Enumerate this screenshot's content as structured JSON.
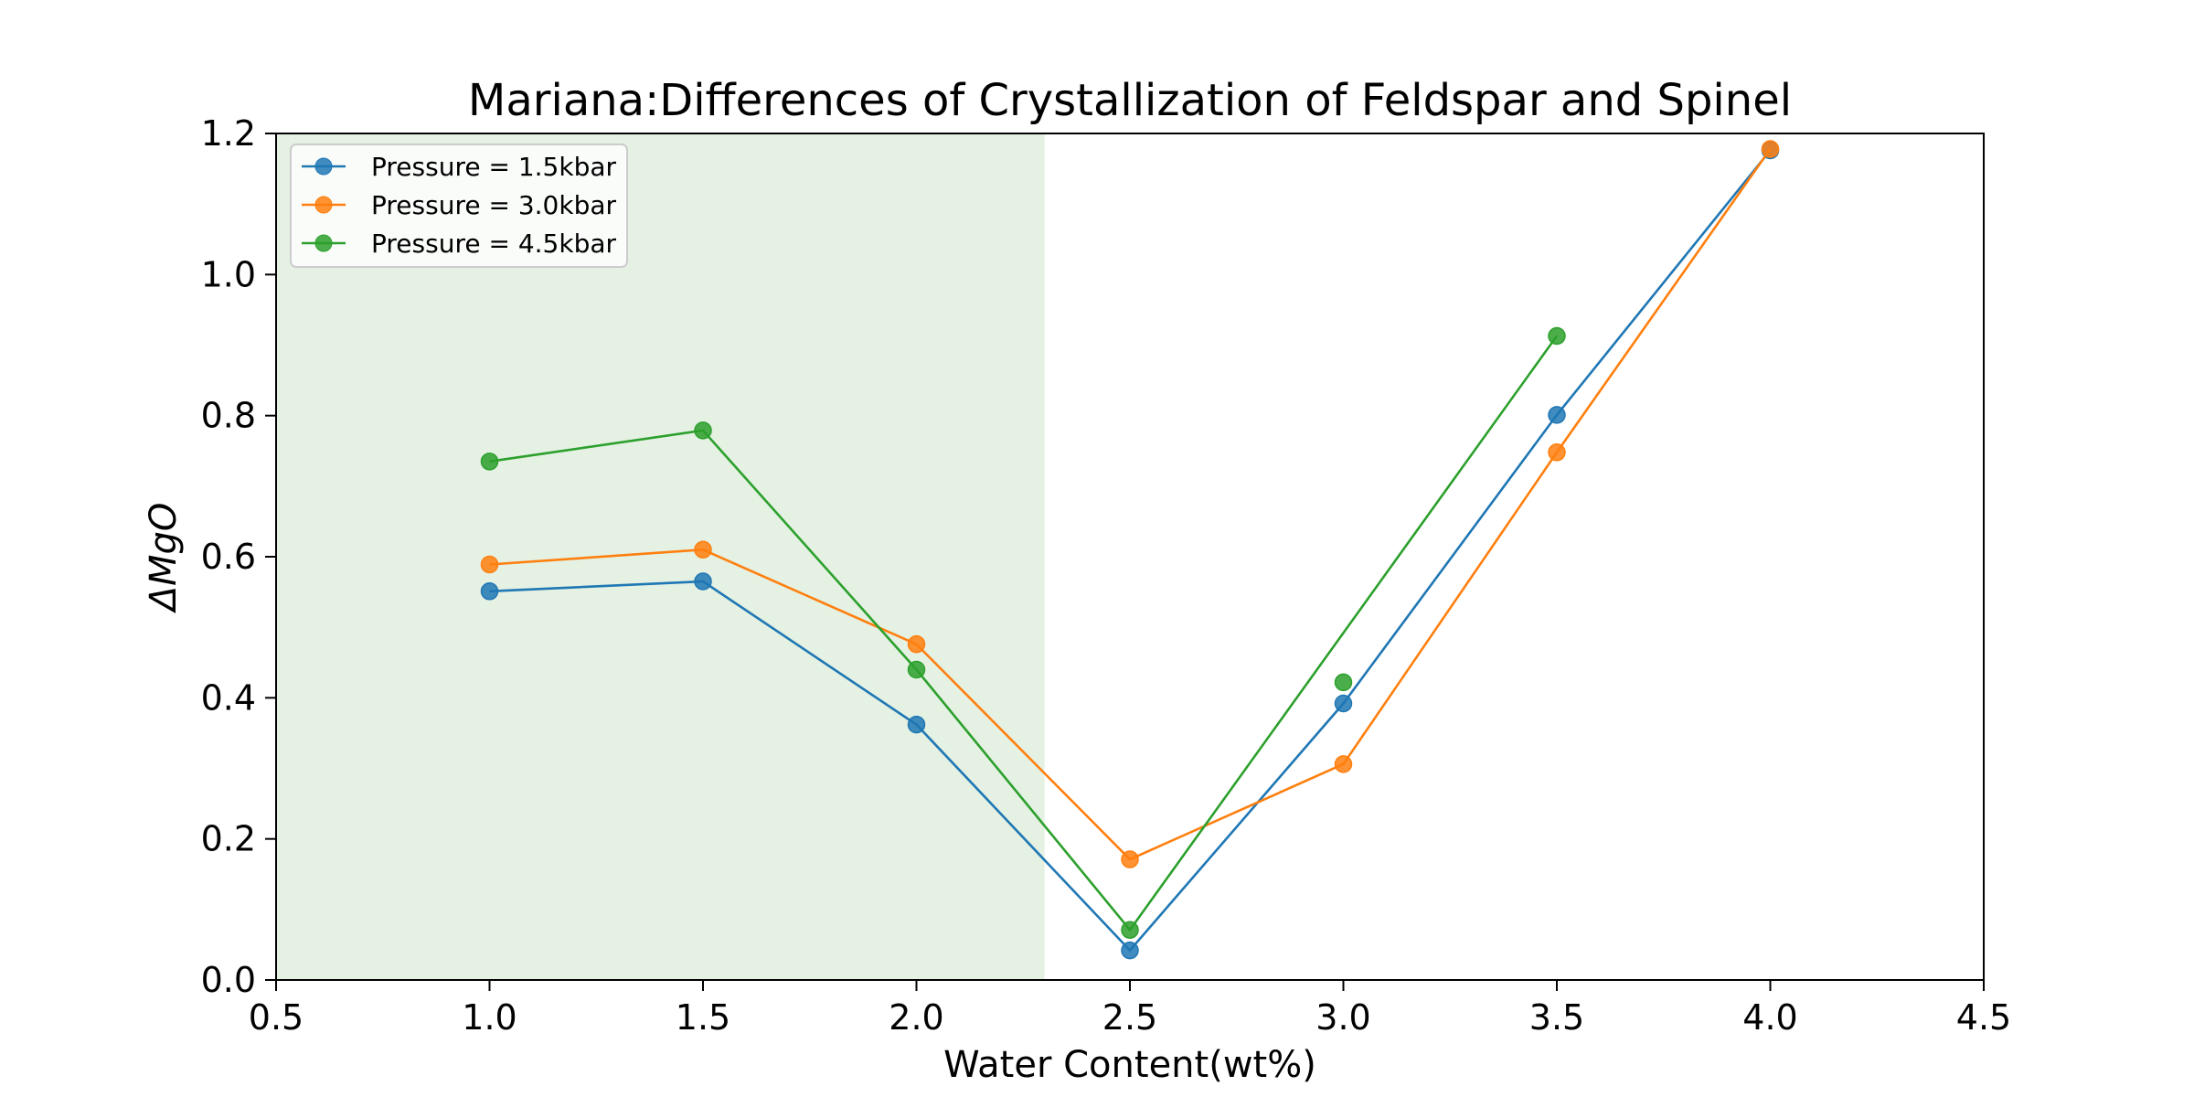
{
  "chart_data": {
    "type": "line",
    "title": "Mariana:Differences of Crystallization of Feldspar and Spinel",
    "xlabel": "Water Content(wt%)",
    "ylabel": "ΔMgO",
    "xlim": [
      0.5,
      4.5
    ],
    "ylim": [
      0.0,
      1.2
    ],
    "xticks": [
      "0.5",
      "1.0",
      "1.5",
      "2.0",
      "2.5",
      "3.0",
      "3.5",
      "4.0",
      "4.5"
    ],
    "yticks": [
      "0.0",
      "0.2",
      "0.4",
      "0.6",
      "0.8",
      "1.0",
      "1.2"
    ],
    "grid": false,
    "legend_position": "top-left",
    "shaded_region": {
      "x_start": 0.5,
      "x_end": 2.3,
      "color": "#e4f1e3"
    },
    "series": [
      {
        "name": "Pressure = 1.5kbar",
        "color": "#1f77b4",
        "x": [
          1.0,
          1.5,
          2.0,
          2.5,
          3.0,
          3.5,
          4.0
        ],
        "y": [
          0.551,
          0.565,
          0.362,
          0.042,
          0.392,
          0.801,
          1.176
        ]
      },
      {
        "name": "Pressure = 3.0kbar",
        "color": "#ff7f0e",
        "x": [
          1.0,
          1.5,
          2.0,
          2.5,
          3.0,
          3.5,
          4.0
        ],
        "y": [
          0.589,
          0.61,
          0.476,
          0.171,
          0.306,
          0.748,
          1.178
        ]
      },
      {
        "name": "Pressure = 4.5kbar",
        "color": "#2ca02c",
        "x": [
          1.0,
          1.5,
          2.0,
          2.5,
          3.5
        ],
        "y": [
          0.735,
          0.779,
          0.44,
          0.071,
          0.913
        ],
        "extra_points": [
          {
            "x": 3.0,
            "y": 0.422
          }
        ]
      }
    ]
  }
}
